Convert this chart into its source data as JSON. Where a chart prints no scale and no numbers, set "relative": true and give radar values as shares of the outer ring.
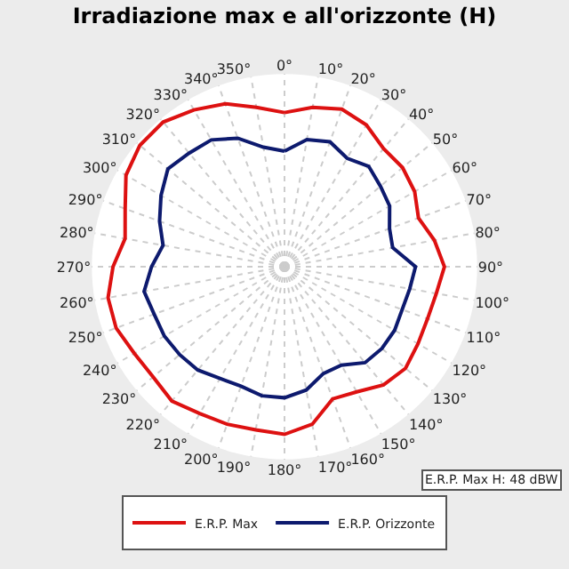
{
  "chart_data": {
    "type": "radar",
    "title": "Irradiazione max e all'orizzonte (H)",
    "relative": true,
    "categories": [
      "0°",
      "10°",
      "20°",
      "30°",
      "40°",
      "50°",
      "60°",
      "70°",
      "80°",
      "90°",
      "100°",
      "110°",
      "120°",
      "130°",
      "140°",
      "150°",
      "160°",
      "170°",
      "180°",
      "190°",
      "200°",
      "210°",
      "220°",
      "230°",
      "240°",
      "250°",
      "260°",
      "270°",
      "280°",
      "290°",
      "300°",
      "310°",
      "320°",
      "330°",
      "340°",
      "350°"
    ],
    "series": [
      {
        "name": "E.R.P. Max",
        "color": "#dd1111",
        "values": [
          0.8,
          0.84,
          0.87,
          0.85,
          0.8,
          0.8,
          0.78,
          0.74,
          0.79,
          0.83,
          0.8,
          0.79,
          0.8,
          0.82,
          0.8,
          0.75,
          0.73,
          0.83,
          0.87,
          0.86,
          0.87,
          0.88,
          0.91,
          0.89,
          0.9,
          0.93,
          0.93,
          0.89,
          0.84,
          0.88,
          0.95,
          0.98,
          0.98,
          0.94,
          0.9,
          0.84
        ]
      },
      {
        "name": "E.R.P. Orizzonte",
        "color": "#0d1a6e",
        "values": [
          0.6,
          0.67,
          0.69,
          0.65,
          0.68,
          0.65,
          0.63,
          0.58,
          0.57,
          0.68,
          0.66,
          0.65,
          0.66,
          0.66,
          0.65,
          0.59,
          0.59,
          0.65,
          0.68,
          0.68,
          0.66,
          0.67,
          0.7,
          0.71,
          0.72,
          0.72,
          0.74,
          0.69,
          0.64,
          0.69,
          0.74,
          0.79,
          0.77,
          0.76,
          0.71,
          0.63
        ]
      }
    ],
    "annotations": [
      "E.R.P. Max H: 48 dBW"
    ],
    "legend": "bottom",
    "grid": true,
    "line_style": "solid",
    "marker": "none"
  }
}
